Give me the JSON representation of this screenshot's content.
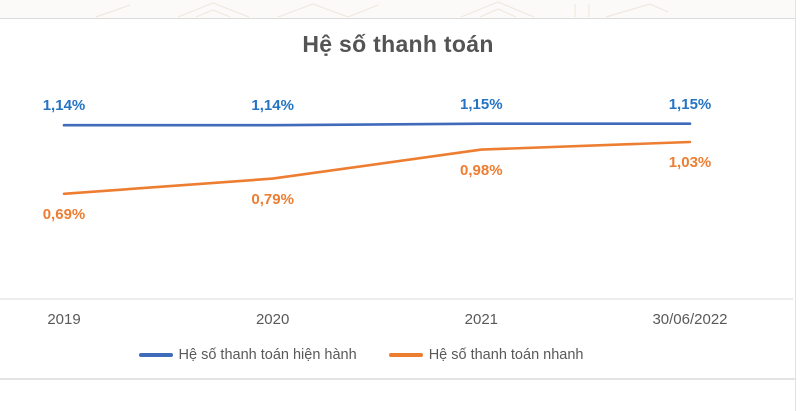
{
  "header": {
    "title": "Hệ số thanh toán"
  },
  "chart_data": {
    "type": "line",
    "title": "Hệ số thanh toán",
    "categories": [
      "2019",
      "2020",
      "2021",
      "30/06/2022"
    ],
    "series": [
      {
        "name": "Hệ số thanh toán hiện hành",
        "color": "#3f6bba",
        "label_color": "#2474c4",
        "values": [
          1.14,
          1.14,
          1.15,
          1.15
        ],
        "labels": [
          "1,14%",
          "1,14%",
          "1,15%",
          "1,15%"
        ],
        "label_position": "above"
      },
      {
        "name": "Hệ số thanh toán nhanh",
        "color": "#ed7d31",
        "label_color": "#ed7d31",
        "values": [
          0.69,
          0.79,
          0.98,
          1.03
        ],
        "labels": [
          "0,69%",
          "0,79%",
          "0,98%",
          "1,03%"
        ],
        "label_position": "below"
      }
    ],
    "ylim": [
      0,
      1.45
    ],
    "grid": false,
    "legend_position": "bottom",
    "value_format": "percent-decimal-comma",
    "axis_color": "#d9d9d9",
    "text_color": "#595959"
  }
}
